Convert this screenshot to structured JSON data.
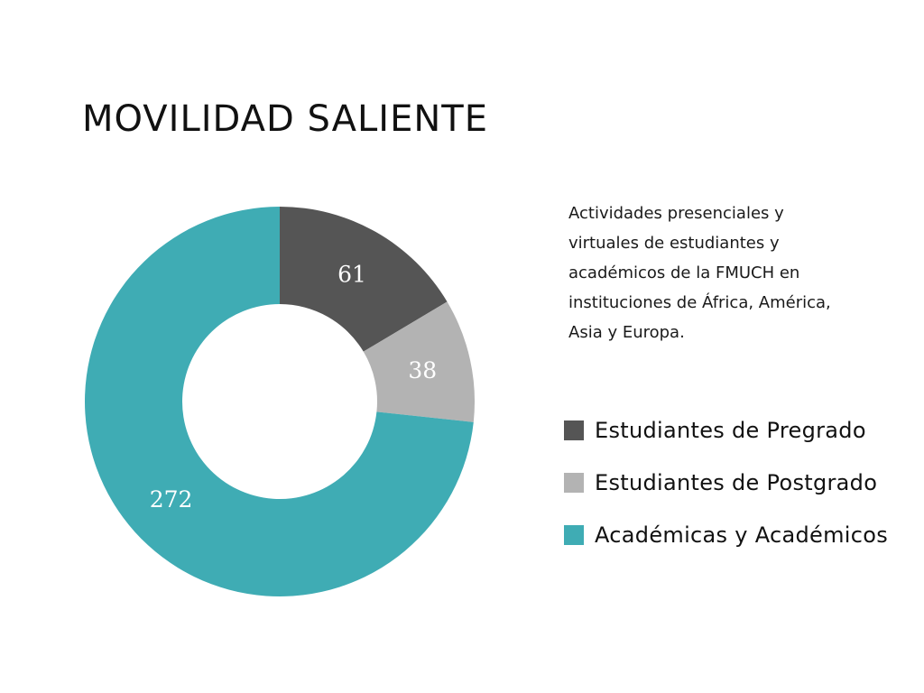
{
  "title": "MOVILIDAD SALIENTE",
  "description": "Actividades presenciales y virtuales de estudiantes y académicos de la FMUCH en instituciones de África, América, Asia y Europa.",
  "chart_data": {
    "type": "pie",
    "variant": "donut",
    "title": "MOVILIDAD SALIENTE",
    "categories": [
      "Estudiantes de Pregrado",
      "Estudiantes de Postgrado",
      "Académicas y Académicos"
    ],
    "values": [
      61,
      38,
      272
    ],
    "colors": [
      "#555555",
      "#b3b3b3",
      "#3facb4"
    ],
    "start_angle": "top",
    "direction": "clockwise",
    "legend_position": "right"
  }
}
